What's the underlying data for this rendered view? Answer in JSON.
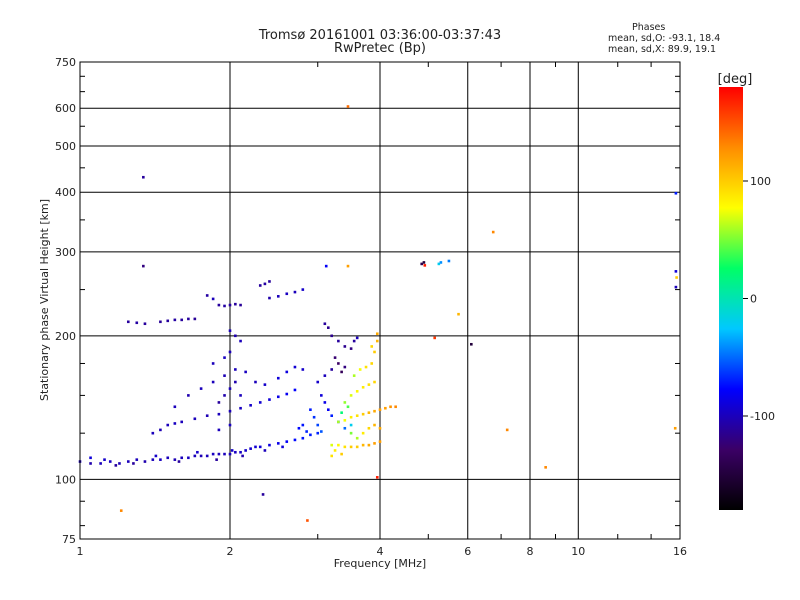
{
  "header": {
    "title_line1": "Tromsø 20161001 03:36:00-03:37:43",
    "title_line2": "RwPretec (Bp)"
  },
  "phase_panel": {
    "title": "Phases",
    "line_o": "mean, sd,O: -93.1, 18.4",
    "line_x": "mean, sd,X: 89.9, 19.1"
  },
  "colorbar": {
    "unit_label": "[deg]",
    "range": [
      -180,
      180
    ],
    "ticks": [
      {
        "value": 100,
        "label": "100"
      },
      {
        "value": 0,
        "label": "0"
      },
      {
        "value": -100,
        "label": "-100"
      }
    ],
    "colors": [
      "#000000",
      "#3b0066",
      "#0000ff",
      "#00c8ff",
      "#00ff66",
      "#ffff00",
      "#ff8c00",
      "#ff0000"
    ]
  },
  "chart_data": {
    "type": "scatter",
    "xlabel": "Frequency [MHz]",
    "ylabel": "Stationary phase Virtual Height [km]",
    "xscale": "log",
    "yscale": "log",
    "xlim": [
      1,
      16
    ],
    "ylim": [
      75,
      750
    ],
    "grid": true,
    "xticks": [
      {
        "value": 1,
        "label": "1"
      },
      {
        "value": 2,
        "label": "2"
      },
      {
        "value": 4,
        "label": "4"
      },
      {
        "value": 6,
        "label": "6"
      },
      {
        "value": 8,
        "label": "8"
      },
      {
        "value": 10,
        "label": "10"
      },
      {
        "value": 16,
        "label": "16"
      }
    ],
    "xminor": [
      3,
      5,
      7,
      9,
      12,
      14
    ],
    "yticks": [
      {
        "value": 75,
        "label": "75"
      },
      {
        "value": 100,
        "label": "100"
      },
      {
        "value": 200,
        "label": "200"
      },
      {
        "value": 300,
        "label": "300"
      },
      {
        "value": 400,
        "label": "400"
      },
      {
        "value": 500,
        "label": "500"
      },
      {
        "value": 600,
        "label": "600"
      },
      {
        "value": 750,
        "label": "750"
      }
    ],
    "yminor": [
      80,
      90,
      125,
      150,
      175,
      250,
      350,
      450,
      550,
      650,
      700
    ],
    "series": [
      {
        "points": [
          [
            1.0,
            109,
            -100
          ],
          [
            1.05,
            108,
            -105
          ],
          [
            1.1,
            108,
            -100
          ],
          [
            1.15,
            109,
            -98
          ],
          [
            1.2,
            108,
            -102
          ],
          [
            1.25,
            109,
            -100
          ],
          [
            1.3,
            110,
            -100
          ],
          [
            1.35,
            109,
            -104
          ],
          [
            1.4,
            110,
            -100
          ],
          [
            1.45,
            110,
            -98
          ],
          [
            1.5,
            111,
            -100
          ],
          [
            1.55,
            110,
            -102
          ],
          [
            1.6,
            111,
            -100
          ],
          [
            1.65,
            111,
            -98
          ],
          [
            1.7,
            112,
            -100
          ],
          [
            1.75,
            112,
            -102
          ],
          [
            1.8,
            112,
            -100
          ],
          [
            1.85,
            113,
            -98
          ],
          [
            1.9,
            113,
            -100
          ],
          [
            1.95,
            113,
            -100
          ],
          [
            2.0,
            113,
            -100
          ],
          [
            2.05,
            114,
            -98
          ],
          [
            2.1,
            114,
            -96
          ],
          [
            2.15,
            115,
            -95
          ],
          [
            2.2,
            116,
            -95
          ],
          [
            2.25,
            117,
            -92
          ],
          [
            2.3,
            117,
            -90
          ],
          [
            2.4,
            118,
            -88
          ],
          [
            2.5,
            119,
            -85
          ],
          [
            2.6,
            120,
            -80
          ],
          [
            2.7,
            121,
            -75
          ],
          [
            2.8,
            122,
            -72
          ],
          [
            2.9,
            124,
            -70
          ],
          [
            3.0,
            125,
            -68
          ],
          [
            1.05,
            111,
            -90
          ],
          [
            1.12,
            110,
            -95
          ],
          [
            1.18,
            107,
            -110
          ],
          [
            1.28,
            108,
            -110
          ],
          [
            1.42,
            112,
            -95
          ],
          [
            1.58,
            109,
            -110
          ],
          [
            1.72,
            114,
            -95
          ],
          [
            1.88,
            110,
            -110
          ],
          [
            2.02,
            115,
            -95
          ],
          [
            2.12,
            112,
            -105
          ],
          [
            2.35,
            115,
            -100
          ],
          [
            2.55,
            117,
            -90
          ]
        ]
      },
      {
        "points": [
          [
            1.4,
            125,
            -100
          ],
          [
            1.45,
            127,
            -102
          ],
          [
            1.5,
            130,
            -100
          ],
          [
            1.55,
            131,
            -98
          ],
          [
            1.6,
            132,
            -100
          ],
          [
            1.7,
            134,
            -100
          ],
          [
            1.8,
            136,
            -102
          ],
          [
            1.9,
            137,
            -100
          ],
          [
            2.0,
            139,
            -100
          ],
          [
            2.1,
            141,
            -98
          ],
          [
            2.2,
            143,
            -95
          ],
          [
            2.3,
            145,
            -92
          ],
          [
            2.4,
            147,
            -90
          ],
          [
            2.5,
            149,
            -85
          ],
          [
            2.6,
            151,
            -82
          ],
          [
            2.7,
            154,
            -78
          ],
          [
            1.55,
            142,
            -100
          ],
          [
            1.65,
            150,
            -104
          ],
          [
            1.75,
            155,
            -100
          ],
          [
            1.85,
            160,
            -100
          ],
          [
            1.95,
            165,
            -102
          ],
          [
            2.05,
            170,
            -100
          ],
          [
            2.15,
            168,
            -98
          ],
          [
            2.25,
            160,
            -100
          ],
          [
            2.35,
            158,
            -95
          ],
          [
            2.5,
            163,
            -90
          ],
          [
            2.6,
            168,
            -88
          ],
          [
            2.7,
            172,
            -92
          ],
          [
            2.8,
            170,
            -95
          ],
          [
            1.9,
            145,
            -110
          ],
          [
            1.95,
            150,
            -105
          ],
          [
            2.0,
            155,
            -100
          ],
          [
            2.05,
            160,
            -104
          ],
          [
            2.1,
            150,
            -100
          ],
          [
            2.0,
            130,
            -98
          ],
          [
            1.9,
            127,
            -100
          ],
          [
            1.85,
            175,
            -100
          ],
          [
            1.95,
            180,
            -98
          ],
          [
            2.0,
            185,
            -100
          ]
        ]
      },
      {
        "points": [
          [
            1.25,
            214,
            -110
          ],
          [
            1.3,
            213,
            -108
          ],
          [
            1.35,
            212,
            -110
          ],
          [
            1.45,
            214,
            -112
          ],
          [
            1.5,
            215,
            -110
          ],
          [
            1.55,
            216,
            -108
          ],
          [
            1.6,
            216,
            -110
          ],
          [
            1.65,
            217,
            -110
          ],
          [
            1.7,
            217,
            -112
          ],
          [
            1.9,
            232,
            -110
          ],
          [
            1.95,
            231,
            -108
          ],
          [
            2.0,
            232,
            -110
          ],
          [
            2.05,
            233,
            -110
          ],
          [
            2.1,
            232,
            -112
          ],
          [
            2.4,
            240,
            -105
          ],
          [
            2.5,
            242,
            -100
          ],
          [
            2.6,
            245,
            -98
          ],
          [
            2.7,
            247,
            -100
          ],
          [
            2.8,
            250,
            -95
          ],
          [
            2.3,
            255,
            -110
          ],
          [
            2.35,
            257,
            -108
          ],
          [
            2.4,
            260,
            -110
          ],
          [
            1.8,
            243,
            -108
          ],
          [
            1.85,
            239,
            -100
          ],
          [
            2.0,
            205,
            -100
          ],
          [
            2.05,
            200,
            -104
          ],
          [
            2.1,
            195,
            -100
          ]
        ]
      },
      {
        "points": [
          [
            3.1,
            212,
            -110
          ],
          [
            3.15,
            208,
            -115
          ],
          [
            3.2,
            200,
            -115
          ],
          [
            3.3,
            195,
            -110
          ],
          [
            3.4,
            190,
            -115
          ],
          [
            3.5,
            188,
            -120
          ],
          [
            3.55,
            195,
            -110
          ],
          [
            3.6,
            198,
            -100
          ],
          [
            3.25,
            180,
            -125
          ],
          [
            3.3,
            175,
            -130
          ],
          [
            3.35,
            168,
            -135
          ],
          [
            3.4,
            172,
            -120
          ],
          [
            3.2,
            170,
            -110
          ],
          [
            3.1,
            165,
            -100
          ],
          [
            3.0,
            160,
            -95
          ],
          [
            3.05,
            150,
            -90
          ],
          [
            3.1,
            145,
            -85
          ],
          [
            3.15,
            140,
            -80
          ],
          [
            3.2,
            136,
            -70
          ],
          [
            3.3,
            132,
            -60
          ],
          [
            3.4,
            128,
            -50
          ],
          [
            3.5,
            130,
            -20
          ],
          [
            2.9,
            140,
            -70
          ],
          [
            2.95,
            135,
            -65
          ],
          [
            3.0,
            130,
            -60
          ],
          [
            3.05,
            126,
            -55
          ],
          [
            2.8,
            130,
            -72
          ],
          [
            2.85,
            126,
            -68
          ],
          [
            2.75,
            128,
            -75
          ]
        ]
      },
      {
        "points": [
          [
            3.2,
            118,
            70
          ],
          [
            3.3,
            118,
            80
          ],
          [
            3.4,
            117,
            90
          ],
          [
            3.5,
            117,
            100
          ],
          [
            3.6,
            117,
            100
          ],
          [
            3.7,
            118,
            110
          ],
          [
            3.8,
            118,
            115
          ],
          [
            3.9,
            119,
            120
          ],
          [
            4.0,
            120,
            120
          ],
          [
            3.3,
            132,
            60
          ],
          [
            3.4,
            133,
            75
          ],
          [
            3.5,
            135,
            85
          ],
          [
            3.6,
            136,
            90
          ],
          [
            3.7,
            137,
            100
          ],
          [
            3.8,
            138,
            110
          ],
          [
            3.9,
            139,
            115
          ],
          [
            4.0,
            140,
            120
          ],
          [
            4.1,
            141,
            120
          ],
          [
            4.2,
            142,
            125
          ],
          [
            4.3,
            142,
            130
          ],
          [
            3.5,
            150,
            70
          ],
          [
            3.6,
            153,
            80
          ],
          [
            3.7,
            156,
            85
          ],
          [
            3.8,
            158,
            90
          ],
          [
            3.9,
            160,
            95
          ],
          [
            3.55,
            165,
            60
          ],
          [
            3.65,
            170,
            75
          ],
          [
            3.75,
            172,
            90
          ],
          [
            3.85,
            175,
            95
          ],
          [
            3.4,
            145,
            55
          ],
          [
            3.45,
            142,
            40
          ],
          [
            3.35,
            138,
            20
          ],
          [
            3.5,
            125,
            50
          ],
          [
            3.6,
            122,
            60
          ],
          [
            3.7,
            125,
            85
          ],
          [
            3.8,
            128,
            95
          ],
          [
            3.9,
            130,
            110
          ],
          [
            4.0,
            128,
            115
          ],
          [
            3.9,
            185,
            100
          ],
          [
            3.95,
            195,
            110
          ],
          [
            3.95,
            202,
            115
          ],
          [
            3.85,
            190,
            95
          ],
          [
            3.2,
            112,
            90
          ],
          [
            3.35,
            113,
            100
          ],
          [
            3.25,
            115,
            85
          ]
        ]
      },
      {
        "points": [
          [
            1.34,
            430,
            -110
          ],
          [
            1.34,
            280,
            -120
          ],
          [
            2.33,
            93,
            -110
          ],
          [
            2.86,
            82,
            150
          ],
          [
            3.12,
            280,
            -80
          ],
          [
            3.45,
            280,
            120
          ],
          [
            3.45,
            605,
            140
          ],
          [
            3.95,
            101,
            170
          ],
          [
            4.85,
            283,
            -140
          ],
          [
            4.9,
            285,
            -150
          ],
          [
            4.92,
            281,
            170
          ],
          [
            5.25,
            283,
            -20
          ],
          [
            5.3,
            285,
            -40
          ],
          [
            5.5,
            287,
            -45
          ],
          [
            5.15,
            198,
            160
          ],
          [
            5.75,
            222,
            110
          ],
          [
            6.1,
            192,
            -150
          ],
          [
            6.75,
            330,
            130
          ],
          [
            7.2,
            127,
            130
          ],
          [
            8.6,
            106,
            130
          ],
          [
            15.7,
            273,
            -90
          ],
          [
            15.75,
            265,
            100
          ],
          [
            15.7,
            253,
            -100
          ],
          [
            15.65,
            128,
            120
          ],
          [
            15.7,
            398,
            -70
          ],
          [
            1.21,
            86,
            130
          ]
        ]
      }
    ]
  }
}
